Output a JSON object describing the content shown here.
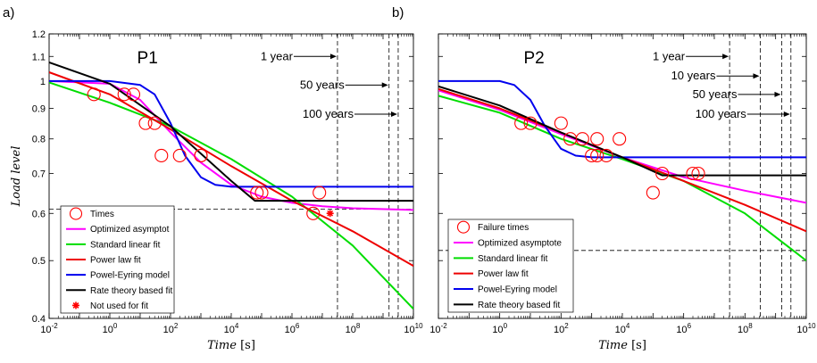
{
  "chart_data": [
    {
      "type": "line",
      "panel_label": "a)",
      "title": "P1",
      "xlabel": "Time [s]",
      "ylabel": "Load level",
      "xscale": "log",
      "yscale": "log",
      "xlim": [
        0.01,
        10000000000
      ],
      "ylim": [
        0.4,
        1.2
      ],
      "xticks": [
        "10-2",
        "100",
        "102",
        "104",
        "106",
        "108",
        "1010"
      ],
      "yticks": [
        "0.4",
        "0.5",
        "0.6",
        "0.7",
        "0.8",
        "0.9",
        "1",
        "1.1",
        "1.2"
      ],
      "annotations": [
        {
          "text": "1 year",
          "y": 1.1,
          "x_line": 31536000
        },
        {
          "text": "50 years",
          "y": 0.985,
          "x_line": 1576800000
        },
        {
          "text": "100 years",
          "y": 0.88,
          "x_line": 3153600000
        }
      ],
      "hline": 0.61,
      "legend_position": "lower-left",
      "scatter": {
        "name": "Times",
        "color": "#ff0000",
        "points": [
          [
            0.3,
            0.95
          ],
          [
            3,
            0.95
          ],
          [
            6,
            0.95
          ],
          [
            15,
            0.85
          ],
          [
            30,
            0.85
          ],
          [
            50,
            0.75
          ],
          [
            200,
            0.75
          ],
          [
            1000,
            0.75
          ],
          [
            1000,
            0.75
          ],
          [
            70000,
            0.65
          ],
          [
            100000,
            0.65
          ],
          [
            5000000,
            0.6
          ],
          [
            8000000,
            0.65
          ]
        ]
      },
      "excluded": {
        "name": "Not used for fit",
        "color": "#ff0000",
        "points": [
          [
            18000000,
            0.6
          ]
        ]
      },
      "series": [
        {
          "name": "Optimized asymptot",
          "color": "#ff00ff",
          "x": [
            0.01,
            1,
            10,
            100,
            1000,
            10000,
            100000,
            1000000,
            10000000,
            100000000,
            10000000000
          ],
          "y": [
            1.0,
            0.99,
            0.93,
            0.82,
            0.73,
            0.67,
            0.64,
            0.625,
            0.617,
            0.612,
            0.608
          ]
        },
        {
          "name": "Standard linear fit",
          "color": "#00dd00",
          "x": [
            0.01,
            1,
            100,
            10000,
            1000000,
            100000000,
            10000000000
          ],
          "y": [
            0.995,
            0.92,
            0.84,
            0.74,
            0.64,
            0.53,
            0.415
          ]
        },
        {
          "name": "Power law fit",
          "color": "#ee0000",
          "x": [
            0.01,
            1,
            100,
            10000,
            1000000,
            100000000,
            10000000000
          ],
          "y": [
            1.035,
            0.95,
            0.83,
            0.72,
            0.63,
            0.56,
            0.49
          ]
        },
        {
          "name": "Powel-Eyring model",
          "color": "#0000ee",
          "x": [
            0.01,
            1,
            10,
            30,
            100,
            300,
            1000,
            3000,
            10000,
            100000,
            10000000000
          ],
          "y": [
            1.0,
            1.0,
            0.985,
            0.95,
            0.85,
            0.75,
            0.69,
            0.67,
            0.665,
            0.665,
            0.665
          ]
        },
        {
          "name": "Rate theory based fit",
          "color": "#000000",
          "x": [
            0.01,
            1,
            100,
            10000,
            60000,
            100000,
            10000000000
          ],
          "y": [
            1.075,
            0.99,
            0.84,
            0.68,
            0.63,
            0.63,
            0.63
          ]
        }
      ]
    },
    {
      "type": "line",
      "panel_label": "b)",
      "title": "P2",
      "xlabel": "Time [s]",
      "xscale": "log",
      "yscale": "log",
      "xlim": [
        0.01,
        10000000000
      ],
      "ylim": [
        0.4,
        1.2
      ],
      "xticks": [
        "10-2",
        "100",
        "102",
        "104",
        "106",
        "108",
        "1010"
      ],
      "annotations": [
        {
          "text": "1 year",
          "y": 1.1,
          "x_line": 31536000
        },
        {
          "text": "10 years",
          "y": 1.02,
          "x_line": 315360000
        },
        {
          "text": "50 years",
          "y": 0.95,
          "x_line": 1576800000
        },
        {
          "text": "100 years",
          "y": 0.88,
          "x_line": 3153600000
        }
      ],
      "hline": 0.52,
      "legend_position": "lower-left",
      "scatter": {
        "name": "Failure times",
        "color": "#ff0000",
        "points": [
          [
            5,
            0.85
          ],
          [
            10,
            0.85
          ],
          [
            100,
            0.85
          ],
          [
            200,
            0.8
          ],
          [
            500,
            0.8
          ],
          [
            1000,
            0.75
          ],
          [
            1500,
            0.8
          ],
          [
            1500,
            0.75
          ],
          [
            3000,
            0.75
          ],
          [
            8000,
            0.8
          ],
          [
            100000,
            0.65
          ],
          [
            200000,
            0.7
          ],
          [
            2000000,
            0.7
          ],
          [
            3000000,
            0.7
          ]
        ]
      },
      "series": [
        {
          "name": "Optimized asymptote",
          "color": "#ff00ff",
          "x": [
            0.01,
            1,
            100,
            10000,
            1000000,
            100000000,
            10000000000
          ],
          "y": [
            0.965,
            0.895,
            0.815,
            0.745,
            0.69,
            0.655,
            0.625
          ]
        },
        {
          "name": "Standard linear fit",
          "color": "#00dd00",
          "x": [
            0.01,
            1,
            100,
            10000,
            1000000,
            100000000,
            10000000000
          ],
          "y": [
            0.945,
            0.885,
            0.8,
            0.74,
            0.68,
            0.6,
            0.5
          ]
        },
        {
          "name": "Power law fit",
          "color": "#ee0000",
          "x": [
            0.01,
            1,
            100,
            10000,
            1000000,
            100000000,
            10000000000
          ],
          "y": [
            0.97,
            0.9,
            0.82,
            0.745,
            0.68,
            0.62,
            0.56
          ]
        },
        {
          "name": "Powel-Eyring model",
          "color": "#0000ee",
          "x": [
            0.01,
            1,
            3,
            10,
            30,
            100,
            300,
            1000,
            10000,
            10000000000
          ],
          "y": [
            1.0,
            1.0,
            0.985,
            0.93,
            0.84,
            0.77,
            0.75,
            0.745,
            0.745,
            0.745
          ]
        },
        {
          "name": "Rate theory based fit",
          "color": "#000000",
          "x": [
            0.01,
            1,
            100,
            10000,
            200000,
            300000,
            10000000000
          ],
          "y": [
            0.98,
            0.91,
            0.82,
            0.745,
            0.695,
            0.695,
            0.695
          ]
        }
      ]
    }
  ]
}
